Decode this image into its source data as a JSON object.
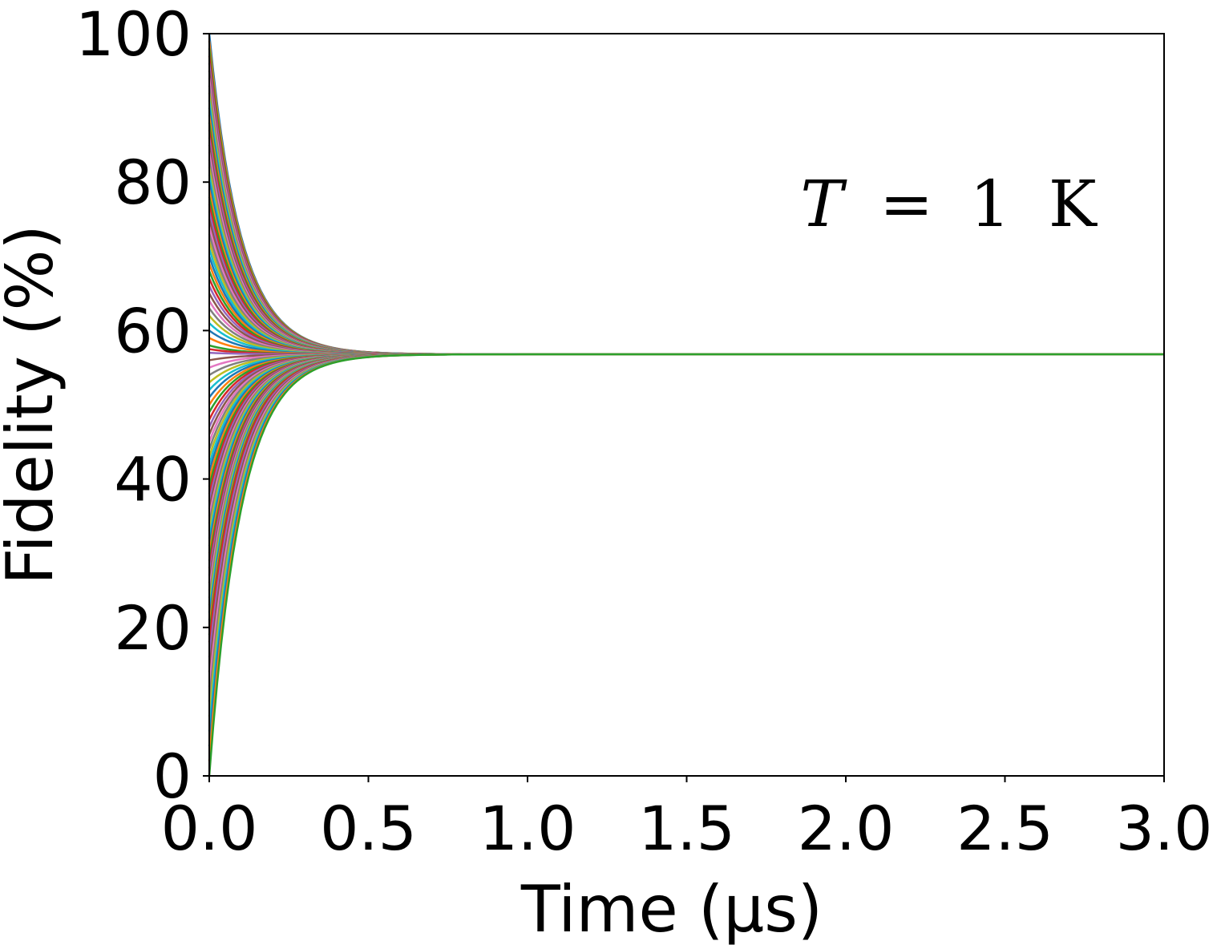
{
  "chart_data": {
    "type": "line",
    "title": "",
    "xlabel": "Time (μs)",
    "ylabel": "Fidelity (%)",
    "xlim": [
      0,
      3.0
    ],
    "ylim": [
      0,
      100
    ],
    "xticks": [
      "0.0",
      "0.5",
      "1.0",
      "1.5",
      "2.0",
      "2.5",
      "3.0"
    ],
    "yticks": [
      "0",
      "20",
      "40",
      "60",
      "80",
      "100"
    ],
    "annotation": "T = 1 K",
    "annotation_parts": {
      "symbol": "T",
      "equals": "=",
      "value": "1",
      "unit": "K"
    },
    "grid": false,
    "legend": "none",
    "series_model": "each curve decays exponentially from its initial fidelity to a common steady state",
    "steady_state": 56.8,
    "decay_time_us": 0.1,
    "initial_values": [
      100,
      99,
      98,
      97,
      96,
      95,
      94,
      93,
      92,
      91,
      90,
      89,
      88,
      87,
      86,
      85,
      84,
      83,
      82,
      81,
      80,
      79,
      78,
      77,
      76,
      75,
      74,
      73,
      72,
      71,
      70,
      69,
      68,
      67,
      66,
      65,
      64,
      63,
      62,
      61,
      60,
      59,
      58,
      57.5,
      57,
      56,
      55,
      54,
      53,
      52,
      51,
      50,
      49,
      48,
      47,
      46,
      45,
      44,
      43,
      42,
      41,
      40,
      39,
      38,
      37,
      36,
      35,
      34,
      33,
      32,
      31,
      30,
      29,
      28,
      27,
      26,
      25,
      24,
      23,
      22,
      21,
      20,
      19,
      18,
      16,
      14,
      12,
      10,
      8,
      6,
      4,
      2,
      0
    ],
    "colors": [
      "#1f77b4",
      "#ff7f0e",
      "#2ca02c",
      "#d62728",
      "#9467bd",
      "#8c564b",
      "#e377c2",
      "#7f7f7f",
      "#bcbd22",
      "#17becf"
    ]
  }
}
